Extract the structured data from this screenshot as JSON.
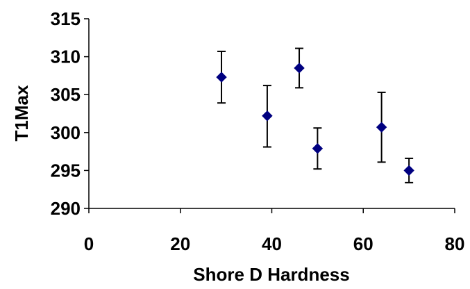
{
  "chart_data": {
    "type": "scatter",
    "title": "",
    "xlabel": "Shore D Hardness",
    "ylabel": "T1Max",
    "xlim": [
      0,
      80
    ],
    "ylim": [
      290,
      315
    ],
    "x_ticks": [
      0,
      20,
      40,
      60,
      80
    ],
    "y_ticks": [
      290,
      295,
      300,
      305,
      310,
      315
    ],
    "x_tick_labels": [
      "0",
      "20",
      "40",
      "60",
      "80"
    ],
    "y_tick_labels": [
      "290",
      "295",
      "300",
      "305",
      "310",
      "315"
    ],
    "grid": false,
    "legend": "none",
    "marker": "diamond",
    "marker_color": "#000080",
    "error_bar_color": "#000000",
    "points": [
      {
        "x": 29,
        "y": 307.3,
        "err_low": 303.9,
        "err_high": 310.7
      },
      {
        "x": 39,
        "y": 302.2,
        "err_low": 298.1,
        "err_high": 306.2
      },
      {
        "x": 46,
        "y": 308.5,
        "err_low": 305.9,
        "err_high": 311.1
      },
      {
        "x": 50,
        "y": 297.9,
        "err_low": 295.2,
        "err_high": 300.6
      },
      {
        "x": 64,
        "y": 300.7,
        "err_low": 296.1,
        "err_high": 305.3
      },
      {
        "x": 70,
        "y": 295.0,
        "err_low": 293.4,
        "err_high": 296.6
      }
    ]
  }
}
